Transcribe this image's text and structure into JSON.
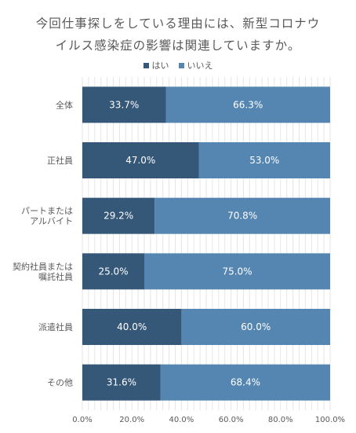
{
  "chart_data": {
    "type": "bar",
    "orientation": "horizontal",
    "stacked": true,
    "title_lines": [
      "今回仕事探しをしている理由には、新型コロナウ",
      "イルス感染症の影響は関連していますか。"
    ],
    "categories": [
      [
        "全体"
      ],
      [
        "正社員"
      ],
      [
        "パートまたは",
        "アルバイト"
      ],
      [
        "契約社員または",
        "嘱託社員"
      ],
      [
        "派遣社員"
      ],
      [
        "その他"
      ]
    ],
    "series": [
      {
        "name": "はい",
        "color": "#355878",
        "values": [
          33.7,
          47.0,
          29.2,
          25.0,
          40.0,
          31.6
        ],
        "labels": [
          "33.7%",
          "47.0%",
          "29.2%",
          "25.0%",
          "40.0%",
          "31.6%"
        ]
      },
      {
        "name": "いいえ",
        "color": "#5586b2",
        "values": [
          66.3,
          53.0,
          70.8,
          75.0,
          60.0,
          68.4
        ],
        "labels": [
          "66.3%",
          "53.0%",
          "70.8%",
          "75.0%",
          "60.0%",
          "68.4%"
        ]
      }
    ],
    "xlim": [
      0,
      100
    ],
    "x_ticks": [
      "0.0%",
      "20.0%",
      "40.0%",
      "60.0%",
      "80.0%",
      "100.0%"
    ],
    "grid": true,
    "legend_position": "top-center"
  }
}
